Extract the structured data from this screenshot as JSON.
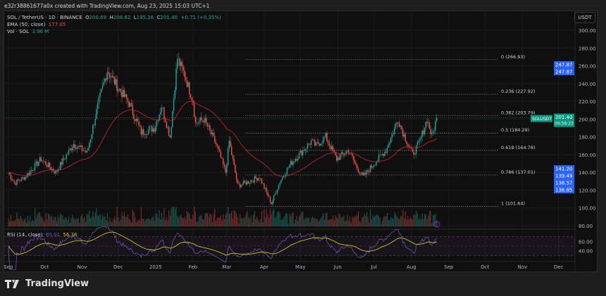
{
  "caption": "e32r38861677a0x created with TradingView.com, Aug 23, 2025 15:03 UTC+1",
  "legend": {
    "symbol": "SOL / TetherUS · 1D · BINANCE",
    "o_label": "O",
    "o": "200.69",
    "h_label": "H",
    "h": "208.62",
    "l_label": "L",
    "l": "195.26",
    "c_label": "C",
    "c": "201.40",
    "change": "+0.71 (+0.35%)",
    "ema_label": "EMA (50, close)",
    "ema_value": "177.05",
    "vol_label": "Vol · SOL",
    "vol_value": "3.96 M",
    "rsi_label": "RSI (14, close)",
    "rsi_value": "60.01",
    "rsi_ma_value": "56.36"
  },
  "currency_button": "USDT",
  "brand": "TradingView",
  "colors": {
    "up": "#26a69a",
    "down": "#ef5350",
    "ema": "#b22833",
    "rsi": "#7e57c2",
    "rsi_ma": "#d4c125",
    "price_tag": "#089981",
    "marker": "#2962ff"
  },
  "price_tag": {
    "symbol": "SOLUSDT",
    "price": "201.40",
    "countdown": "09:56:23"
  },
  "axis_markers": [
    "247.87",
    "247.87",
    "141.20",
    "139.49",
    "138.57",
    "136.85"
  ],
  "chart_data": {
    "type": "candlestick",
    "title": "SOL / TetherUS · 1D · BINANCE",
    "ylim": [
      80,
      300
    ],
    "y_ticks": [
      "300.00",
      "280.00",
      "260.00",
      "240.00",
      "220.00",
      "200.00",
      "180.00",
      "160.00",
      "140.00",
      "120.00",
      "100.00",
      "80.00"
    ],
    "x_ticks": [
      "Sep",
      "Oct",
      "Nov",
      "Dec",
      "2025",
      "Feb",
      "Mar",
      "Apr",
      "May",
      "Jun",
      "Jul",
      "Aug",
      "Sep",
      "Oct",
      "Nov",
      "Dec"
    ],
    "approx_closes": [
      [
        "2024-09-01",
        140
      ],
      [
        "2024-09-06",
        128
      ],
      [
        "2024-09-15",
        135
      ],
      [
        "2024-09-28",
        155
      ],
      [
        "2024-10-10",
        140
      ],
      [
        "2024-10-25",
        172
      ],
      [
        "2024-11-05",
        162
      ],
      [
        "2024-11-15",
        220
      ],
      [
        "2024-11-22",
        255
      ],
      [
        "2024-12-01",
        235
      ],
      [
        "2024-12-10",
        218
      ],
      [
        "2024-12-20",
        185
      ],
      [
        "2024-12-31",
        190
      ],
      [
        "2025-01-06",
        215
      ],
      [
        "2025-01-13",
        180
      ],
      [
        "2025-01-19",
        268
      ],
      [
        "2025-01-25",
        250
      ],
      [
        "2025-02-01",
        220
      ],
      [
        "2025-02-03",
        195
      ],
      [
        "2025-02-10",
        200
      ],
      [
        "2025-02-20",
        172
      ],
      [
        "2025-02-28",
        140
      ],
      [
        "2025-03-03",
        175
      ],
      [
        "2025-03-10",
        125
      ],
      [
        "2025-03-20",
        130
      ],
      [
        "2025-03-28",
        135
      ],
      [
        "2025-04-07",
        105
      ],
      [
        "2025-04-14",
        130
      ],
      [
        "2025-04-23",
        150
      ],
      [
        "2025-05-10",
        175
      ],
      [
        "2025-05-14",
        170
      ],
      [
        "2025-05-22",
        180
      ],
      [
        "2025-05-31",
        155
      ],
      [
        "2025-06-10",
        165
      ],
      [
        "2025-06-17",
        145
      ],
      [
        "2025-06-22",
        135
      ],
      [
        "2025-07-01",
        150
      ],
      [
        "2025-07-11",
        165
      ],
      [
        "2025-07-21",
        200
      ],
      [
        "2025-07-25",
        185
      ],
      [
        "2025-08-02",
        160
      ],
      [
        "2025-08-08",
        175
      ],
      [
        "2025-08-14",
        200
      ],
      [
        "2025-08-18",
        180
      ],
      [
        "2025-08-22",
        201.4
      ]
    ],
    "fib_levels": [
      {
        "label": "0 (266.93)",
        "value": 266.93
      },
      {
        "label": "0.236 (227.92)",
        "value": 227.92
      },
      {
        "label": "0.382 (203.79)",
        "value": 203.79
      },
      {
        "label": "0.5 (184.29)",
        "value": 184.29
      },
      {
        "label": "0.618 (164.78)",
        "value": 164.78
      },
      {
        "label": "0.786 (137.01)",
        "value": 137.01
      },
      {
        "label": "1 (101.64)",
        "value": 101.64
      }
    ],
    "rsi_ticks": [
      "60.00",
      "40.00"
    ],
    "grid": true
  }
}
